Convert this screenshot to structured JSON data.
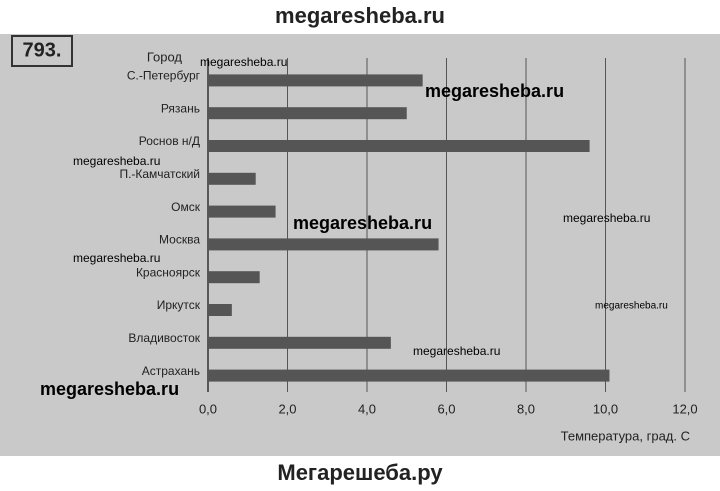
{
  "header": "megaresheba.ru",
  "footer": "Мегарешеба.ру",
  "problem_number": "793.",
  "watermarks": [
    "megaresheba.ru",
    "megaresheba.ru",
    "megaresheba.ru",
    "megaresheba.ru",
    "megaresheba.ru",
    "megaresheba.ru",
    "megaresheba.ru",
    "megaresheba.ru",
    "megaresheba.ru"
  ],
  "chart_data": {
    "type": "barh",
    "y_axis_title": "Город",
    "x_axis_title": "Температура, град. С",
    "categories": [
      "С.-Петербург",
      "Рязань",
      "Роснов н/Д",
      "П.-Камчатский",
      "Омск",
      "Москва",
      "Красноярск",
      "Иркутск",
      "Владивосток",
      "Астрахань"
    ],
    "values": [
      5.4,
      5.0,
      9.6,
      1.2,
      1.7,
      5.8,
      1.3,
      0.6,
      4.6,
      10.1
    ],
    "color": "#555555",
    "xlim": [
      0,
      12
    ],
    "xticks": [
      {
        "value": 0,
        "label": "0,0"
      },
      {
        "value": 2,
        "label": "2,0"
      },
      {
        "value": 4,
        "label": "4,0"
      },
      {
        "value": 6,
        "label": "6,0"
      },
      {
        "value": 8,
        "label": "8,0"
      },
      {
        "value": 10,
        "label": "10,0"
      },
      {
        "value": 12,
        "label": "12,0"
      }
    ],
    "grid": true
  }
}
